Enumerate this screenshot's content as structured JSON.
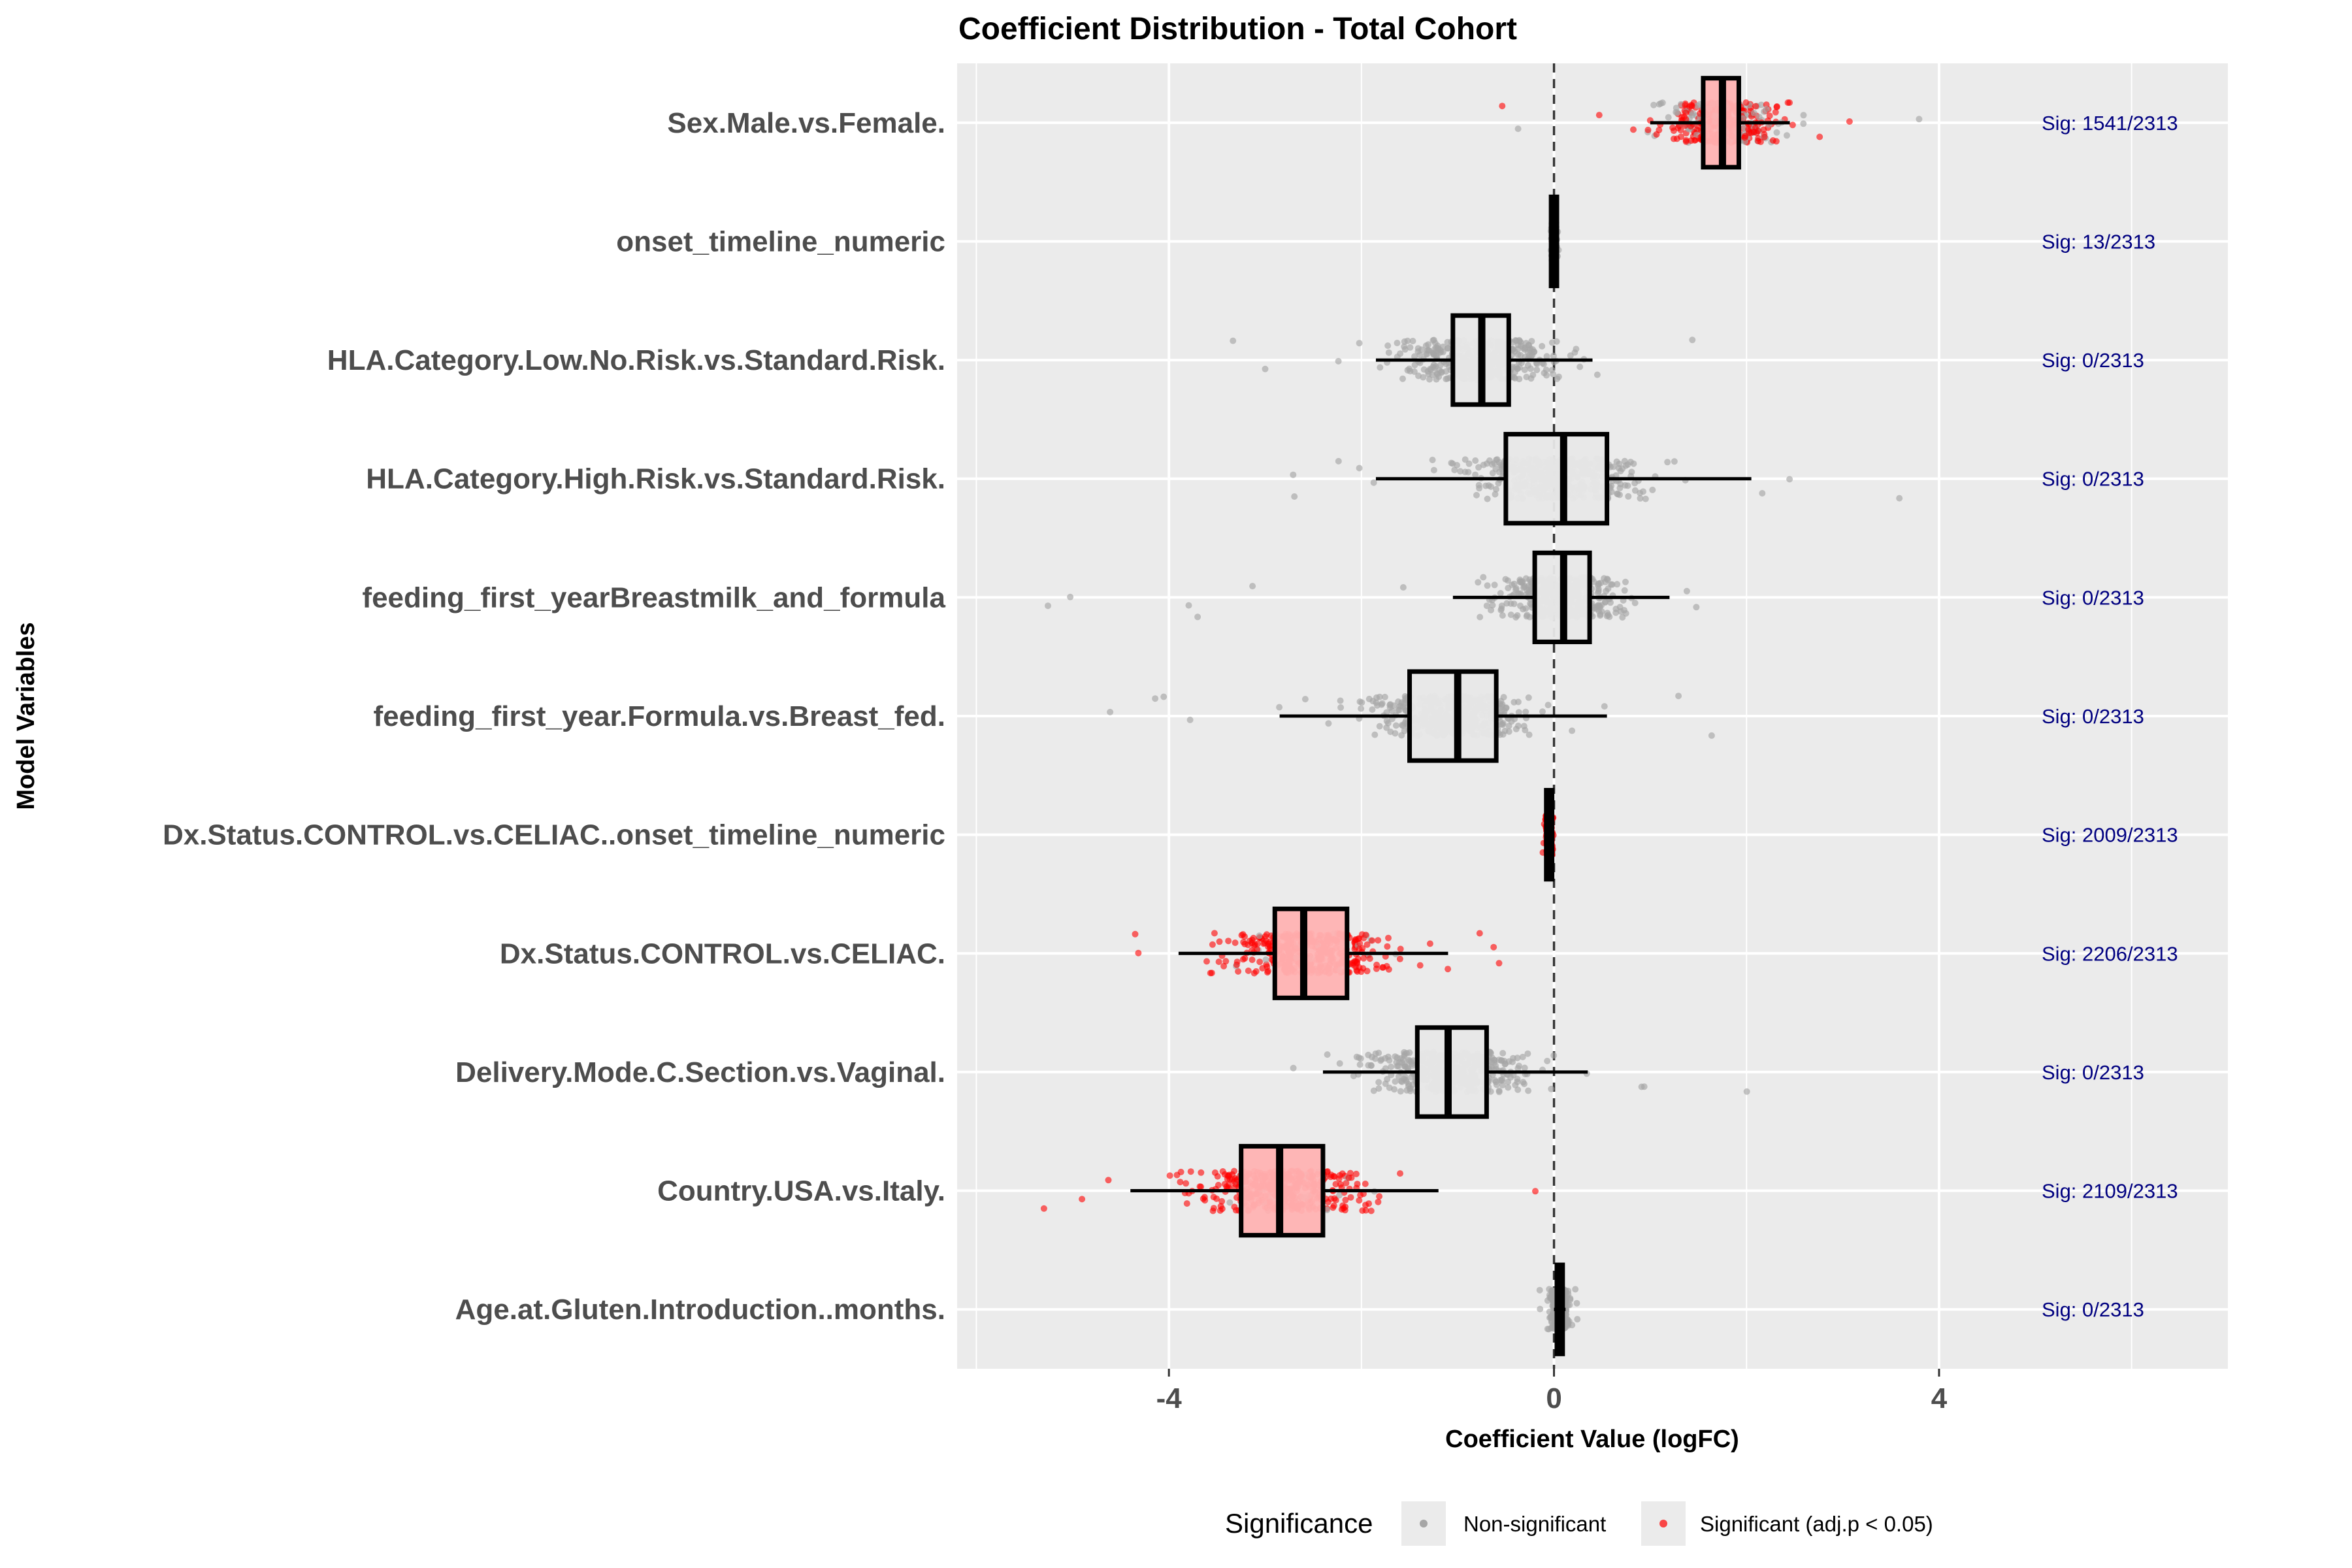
{
  "chart_data": {
    "type": "box",
    "title": "Coefficient Distribution - Total Cohort",
    "xlabel": "Coefficient Value (logFC)",
    "ylabel": "Model Variables",
    "xlim": [
      -6.2,
      7.0
    ],
    "x_ticks": [
      -4,
      0,
      4
    ],
    "x_tick_labels": [
      "-4",
      "0",
      "4"
    ],
    "reference_line": 0,
    "n_total": 2313,
    "legend": {
      "title": "Significance",
      "position": "bottom",
      "entries": [
        {
          "label": "Non-significant",
          "color": "#a6a6a6"
        },
        {
          "label": "Significant (adj.p < 0.05)",
          "color": "#ff0000"
        }
      ]
    },
    "series": [
      {
        "name": "Sex.Male.vs.Female.",
        "sig_label": "Sig: 1541/2313",
        "sig_fraction": 0.666,
        "q1": 1.55,
        "median": 1.75,
        "q3": 1.92,
        "whisker_low": 1.0,
        "whisker_high": 2.45,
        "spread": 0.42,
        "outlier_min": -0.6,
        "outlier_max": 4.5
      },
      {
        "name": "onset_timeline_numeric",
        "sig_label": "Sig: 13/2313",
        "sig_fraction": 0.006,
        "q1": -0.03,
        "median": 0.0,
        "q3": 0.03,
        "whisker_low": -0.04,
        "whisker_high": 0.04,
        "spread": 0.015,
        "outlier_min": -0.05,
        "outlier_max": 0.05
      },
      {
        "name": "HLA.Category.Low.No.Risk.vs.Standard.Risk.",
        "sig_label": "Sig: 0/2313",
        "sig_fraction": 0.0,
        "q1": -1.05,
        "median": -0.75,
        "q3": -0.47,
        "whisker_low": -1.85,
        "whisker_high": 0.4,
        "spread": 0.55,
        "outlier_min": -4.0,
        "outlier_max": 1.8
      },
      {
        "name": "HLA.Category.High.Risk.vs.Standard.Risk.",
        "sig_label": "Sig: 0/2313",
        "sig_fraction": 0.0,
        "q1": -0.5,
        "median": 0.1,
        "q3": 0.55,
        "whisker_low": -1.85,
        "whisker_high": 2.05,
        "spread": 0.6,
        "outlier_min": -2.9,
        "outlier_max": 3.65
      },
      {
        "name": "feeding_first_yearBreastmilk_and_formula",
        "sig_label": "Sig: 0/2313",
        "sig_fraction": 0.0,
        "q1": -0.2,
        "median": 0.1,
        "q3": 0.37,
        "whisker_low": -1.05,
        "whisker_high": 1.2,
        "spread": 0.45,
        "outlier_min": -5.95,
        "outlier_max": 1.6
      },
      {
        "name": "feeding_first_year.Formula.vs.Breast_fed.",
        "sig_label": "Sig: 0/2313",
        "sig_fraction": 0.0,
        "q1": -1.5,
        "median": -1.0,
        "q3": -0.6,
        "whisker_low": -2.85,
        "whisker_high": 0.55,
        "spread": 0.55,
        "outlier_min": -4.8,
        "outlier_max": 1.7
      },
      {
        "name": "Dx.Status.CONTROL.vs.CELIAC..onset_timeline_numeric",
        "sig_label": "Sig: 2009/2313",
        "sig_fraction": 0.869,
        "q1": -0.08,
        "median": -0.05,
        "q3": -0.02,
        "whisker_low": -0.1,
        "whisker_high": 0.0,
        "spread": 0.02,
        "outlier_min": -0.12,
        "outlier_max": 0.02
      },
      {
        "name": "Dx.Status.CONTROL.vs.CELIAC.",
        "sig_label": "Sig: 2206/2313",
        "sig_fraction": 0.954,
        "q1": -2.9,
        "median": -2.6,
        "q3": -2.15,
        "whisker_low": -3.9,
        "whisker_high": -1.1,
        "spread": 0.55,
        "outlier_min": -4.85,
        "outlier_max": -0.5
      },
      {
        "name": "Delivery.Mode.C.Section.vs.Vaginal.",
        "sig_label": "Sig: 0/2313",
        "sig_fraction": 0.0,
        "q1": -1.42,
        "median": -1.1,
        "q3": -0.7,
        "whisker_low": -2.4,
        "whisker_high": 0.35,
        "spread": 0.55,
        "outlier_min": -2.85,
        "outlier_max": 2.05
      },
      {
        "name": "Country.USA.vs.Italy.",
        "sig_label": "Sig: 2109/2313",
        "sig_fraction": 0.912,
        "q1": -3.25,
        "median": -2.85,
        "q3": -2.4,
        "whisker_low": -4.4,
        "whisker_high": -1.2,
        "spread": 0.6,
        "outlier_min": -5.5,
        "outlier_max": 1.0
      },
      {
        "name": "Age.at.Gluten.Introduction..months.",
        "sig_label": "Sig: 0/2313",
        "sig_fraction": 0.0,
        "q1": 0.03,
        "median": 0.06,
        "q3": 0.09,
        "whisker_low": 0.0,
        "whisker_high": 0.12,
        "spread": 0.06,
        "outlier_min": -0.2,
        "outlier_max": 0.25
      }
    ]
  }
}
